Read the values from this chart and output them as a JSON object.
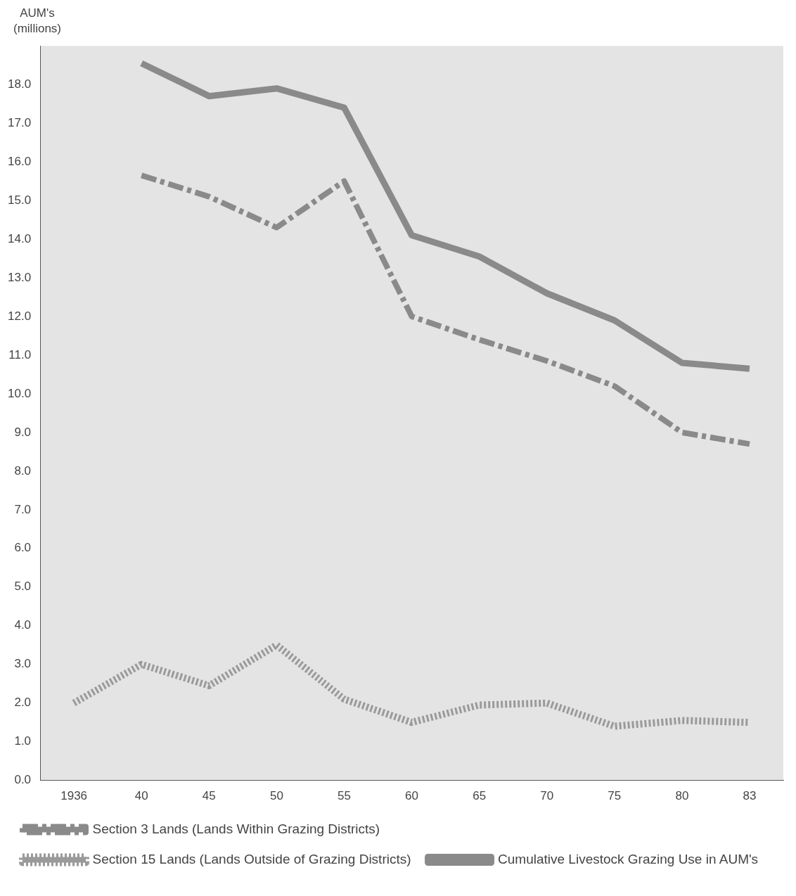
{
  "chart_data": {
    "type": "line",
    "ylabel": "AUM's (millions)",
    "categories": [
      "1936",
      "40",
      "45",
      "50",
      "55",
      "60",
      "65",
      "70",
      "75",
      "80",
      "83"
    ],
    "series": [
      {
        "name": "Section 3 Lands (Lands Within Grazing Districts)",
        "color": "#8a8a8a",
        "line_style": "dashed",
        "values": [
          null,
          15.65,
          15.1,
          14.3,
          15.5,
          12.0,
          11.4,
          10.85,
          10.2,
          9.0,
          8.7
        ]
      },
      {
        "name": "Section 15 Lands (Lands Outside of Grazing Districts)",
        "color": "#9a9a9a",
        "line_style": "dotted",
        "values": [
          2.0,
          3.0,
          2.45,
          3.5,
          2.1,
          1.5,
          1.95,
          2.0,
          1.4,
          1.55,
          1.5
        ]
      },
      {
        "name": "Cumulative Livestock Grazing Use in AUM's",
        "color": "#8a8a8a",
        "line_style": "solid",
        "values": [
          null,
          18.55,
          17.7,
          17.9,
          17.4,
          14.1,
          13.55,
          12.6,
          11.9,
          10.8,
          10.65
        ]
      }
    ],
    "ylim": [
      0,
      19
    ],
    "yticks": [
      {
        "value": 0,
        "label": "0.0"
      },
      {
        "value": 1,
        "label": "1.0"
      },
      {
        "value": 2,
        "label": "2.0"
      },
      {
        "value": 3,
        "label": "3.0"
      },
      {
        "value": 4,
        "label": "4.0"
      },
      {
        "value": 5,
        "label": "5.0"
      },
      {
        "value": 6,
        "label": "6.0"
      },
      {
        "value": 7,
        "label": "7.0"
      },
      {
        "value": 8,
        "label": "8.0"
      },
      {
        "value": 9,
        "label": "9.0"
      },
      {
        "value": 10,
        "label": "10.0"
      },
      {
        "value": 11,
        "label": "11.0"
      },
      {
        "value": 12,
        "label": "12.0"
      },
      {
        "value": 13,
        "label": "13.0"
      },
      {
        "value": 14,
        "label": "14.0"
      },
      {
        "value": 15,
        "label": "15.0"
      },
      {
        "value": 16,
        "label": "16.0"
      },
      {
        "value": 17,
        "label": "17.0"
      },
      {
        "value": 18,
        "label": "18.0"
      }
    ],
    "grid": false,
    "legend": "bottom",
    "marker": "none"
  }
}
